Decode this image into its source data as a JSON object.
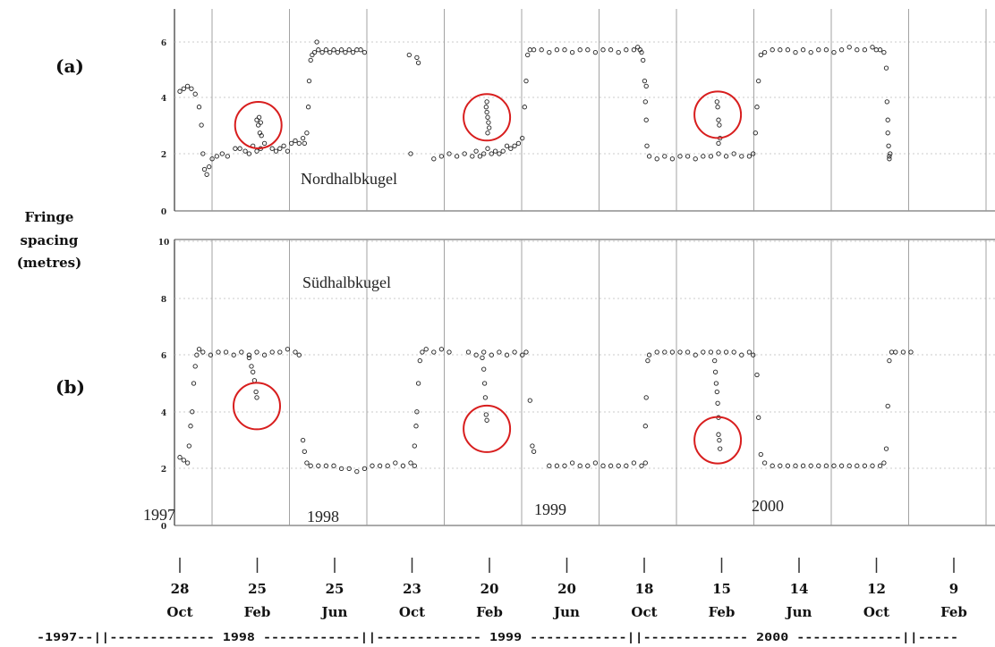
{
  "chart_data": [
    {
      "panel": "(a)",
      "type": "scatter",
      "annotation": "Nordhalbkugel",
      "ylim": [
        0,
        6.5
      ],
      "yticks": [
        "0",
        "2",
        "4",
        "6"
      ],
      "xlim": [
        0,
        11.6
      ],
      "points": [
        [
          0.0,
          4.6
        ],
        [
          0.05,
          4.7
        ],
        [
          0.1,
          4.8
        ],
        [
          0.15,
          4.7
        ],
        [
          0.2,
          4.5
        ],
        [
          0.25,
          4.0
        ],
        [
          0.28,
          3.3
        ],
        [
          0.3,
          2.2
        ],
        [
          0.32,
          1.6
        ],
        [
          0.35,
          1.4
        ],
        [
          0.38,
          1.7
        ],
        [
          0.42,
          2.0
        ],
        [
          0.48,
          2.1
        ],
        [
          0.55,
          2.2
        ],
        [
          0.62,
          2.1
        ],
        [
          0.72,
          2.4
        ],
        [
          0.78,
          2.4
        ],
        [
          0.85,
          2.3
        ],
        [
          0.9,
          2.2
        ],
        [
          0.95,
          2.5
        ],
        [
          1.0,
          2.3
        ],
        [
          1.05,
          2.4
        ],
        [
          1.1,
          2.6
        ],
        [
          1.2,
          2.4
        ],
        [
          1.25,
          2.3
        ],
        [
          1.3,
          2.4
        ],
        [
          1.35,
          2.5
        ],
        [
          1.4,
          2.3
        ],
        [
          1.45,
          2.6
        ],
        [
          1.5,
          2.7
        ],
        [
          1.55,
          2.6
        ],
        [
          1.6,
          2.8
        ],
        [
          1.62,
          2.6
        ],
        [
          1.0,
          3.5
        ],
        [
          1.02,
          3.3
        ],
        [
          1.04,
          3.0
        ],
        [
          1.06,
          2.9
        ],
        [
          1.03,
          3.6
        ],
        [
          1.05,
          3.4
        ],
        [
          1.65,
          3.0
        ],
        [
          1.67,
          4.0
        ],
        [
          1.68,
          5.0
        ],
        [
          1.7,
          5.8
        ],
        [
          1.72,
          6.0
        ],
        [
          1.75,
          6.1
        ],
        [
          1.8,
          6.2
        ],
        [
          1.85,
          6.1
        ],
        [
          1.9,
          6.2
        ],
        [
          1.95,
          6.1
        ],
        [
          2.0,
          6.2
        ],
        [
          2.05,
          6.1
        ],
        [
          2.1,
          6.2
        ],
        [
          2.15,
          6.1
        ],
        [
          2.2,
          6.2
        ],
        [
          2.25,
          6.1
        ],
        [
          2.3,
          6.2
        ],
        [
          2.35,
          6.2
        ],
        [
          2.4,
          6.1
        ],
        [
          1.78,
          6.5
        ],
        [
          2.98,
          6.0
        ],
        [
          3.08,
          5.9
        ],
        [
          3.1,
          5.7
        ],
        [
          3.0,
          2.2
        ],
        [
          3.3,
          2.0
        ],
        [
          3.4,
          2.1
        ],
        [
          3.5,
          2.2
        ],
        [
          3.6,
          2.1
        ],
        [
          3.7,
          2.2
        ],
        [
          3.8,
          2.1
        ],
        [
          3.85,
          2.3
        ],
        [
          3.9,
          2.1
        ],
        [
          3.95,
          2.2
        ],
        [
          4.0,
          2.4
        ],
        [
          4.05,
          2.2
        ],
        [
          4.1,
          2.3
        ],
        [
          4.15,
          2.2
        ],
        [
          4.2,
          2.3
        ],
        [
          4.25,
          2.5
        ],
        [
          4.3,
          2.4
        ],
        [
          4.35,
          2.5
        ],
        [
          4.4,
          2.6
        ],
        [
          4.45,
          2.8
        ],
        [
          3.98,
          4.0
        ],
        [
          3.99,
          3.8
        ],
        [
          4.0,
          3.6
        ],
        [
          4.01,
          3.4
        ],
        [
          4.02,
          3.2
        ],
        [
          3.99,
          4.2
        ],
        [
          4.0,
          3.0
        ],
        [
          4.48,
          4.0
        ],
        [
          4.5,
          5.0
        ],
        [
          4.52,
          6.0
        ],
        [
          4.55,
          6.2
        ],
        [
          4.6,
          6.2
        ],
        [
          4.7,
          6.2
        ],
        [
          4.8,
          6.1
        ],
        [
          4.9,
          6.2
        ],
        [
          5.0,
          6.2
        ],
        [
          5.1,
          6.1
        ],
        [
          5.2,
          6.2
        ],
        [
          5.3,
          6.2
        ],
        [
          5.4,
          6.1
        ],
        [
          5.5,
          6.2
        ],
        [
          5.6,
          6.2
        ],
        [
          5.7,
          6.1
        ],
        [
          5.8,
          6.2
        ],
        [
          5.9,
          6.2
        ],
        [
          5.95,
          6.3
        ],
        [
          5.98,
          6.2
        ],
        [
          6.0,
          6.1
        ],
        [
          6.02,
          5.8
        ],
        [
          6.04,
          5.0
        ],
        [
          6.05,
          4.2
        ],
        [
          6.06,
          3.5
        ],
        [
          6.07,
          2.5
        ],
        [
          6.06,
          4.8
        ],
        [
          6.1,
          2.1
        ],
        [
          6.2,
          2.0
        ],
        [
          6.3,
          2.1
        ],
        [
          6.4,
          2.0
        ],
        [
          6.5,
          2.1
        ],
        [
          6.6,
          2.1
        ],
        [
          6.7,
          2.0
        ],
        [
          6.8,
          2.1
        ],
        [
          6.9,
          2.1
        ],
        [
          7.0,
          2.2
        ],
        [
          7.1,
          2.1
        ],
        [
          7.2,
          2.2
        ],
        [
          7.3,
          2.1
        ],
        [
          7.4,
          2.1
        ],
        [
          7.45,
          2.2
        ],
        [
          6.98,
          4.2
        ],
        [
          6.99,
          4.0
        ],
        [
          7.0,
          3.5
        ],
        [
          7.01,
          3.3
        ],
        [
          7.02,
          2.8
        ],
        [
          7.0,
          2.6
        ],
        [
          7.48,
          3.0
        ],
        [
          7.5,
          4.0
        ],
        [
          7.52,
          5.0
        ],
        [
          7.55,
          6.0
        ],
        [
          7.6,
          6.1
        ],
        [
          7.7,
          6.2
        ],
        [
          7.8,
          6.2
        ],
        [
          7.9,
          6.2
        ],
        [
          8.0,
          6.1
        ],
        [
          8.1,
          6.2
        ],
        [
          8.2,
          6.1
        ],
        [
          8.3,
          6.2
        ],
        [
          8.4,
          6.2
        ],
        [
          8.5,
          6.1
        ],
        [
          8.6,
          6.2
        ],
        [
          8.7,
          6.3
        ],
        [
          8.8,
          6.2
        ],
        [
          8.9,
          6.2
        ],
        [
          9.0,
          6.3
        ],
        [
          9.05,
          6.2
        ],
        [
          9.1,
          6.2
        ],
        [
          9.15,
          6.1
        ],
        [
          9.18,
          5.5
        ],
        [
          9.19,
          4.2
        ],
        [
          9.2,
          3.5
        ],
        [
          9.2,
          3.0
        ],
        [
          9.21,
          2.5
        ],
        [
          9.22,
          2.1
        ],
        [
          9.22,
          2.0
        ],
        [
          9.23,
          2.2
        ]
      ]
    },
    {
      "panel": "(b)",
      "type": "scatter",
      "annotation": "Südhalbkugel",
      "ylim": [
        0,
        10
      ],
      "yticks": [
        "0",
        "2",
        "4",
        "6",
        "8",
        "10"
      ],
      "xlim": [
        0,
        11.6
      ],
      "points": [
        [
          0.0,
          2.4
        ],
        [
          0.05,
          2.3
        ],
        [
          0.1,
          2.2
        ],
        [
          0.12,
          2.8
        ],
        [
          0.14,
          3.5
        ],
        [
          0.16,
          4.0
        ],
        [
          0.18,
          5.0
        ],
        [
          0.2,
          5.6
        ],
        [
          0.22,
          6.0
        ],
        [
          0.25,
          6.2
        ],
        [
          0.3,
          6.1
        ],
        [
          0.4,
          6.0
        ],
        [
          0.5,
          6.1
        ],
        [
          0.6,
          6.1
        ],
        [
          0.7,
          6.0
        ],
        [
          0.8,
          6.1
        ],
        [
          0.9,
          6.0
        ],
        [
          1.0,
          6.1
        ],
        [
          1.1,
          6.0
        ],
        [
          1.2,
          6.1
        ],
        [
          1.3,
          6.1
        ],
        [
          1.4,
          6.2
        ],
        [
          1.5,
          6.1
        ],
        [
          1.55,
          6.0
        ],
        [
          0.9,
          5.9
        ],
        [
          0.93,
          5.6
        ],
        [
          0.95,
          5.4
        ],
        [
          0.97,
          5.1
        ],
        [
          0.99,
          4.7
        ],
        [
          1.0,
          4.5
        ],
        [
          1.6,
          3.0
        ],
        [
          1.62,
          2.6
        ],
        [
          1.65,
          2.2
        ],
        [
          1.7,
          2.1
        ],
        [
          1.8,
          2.1
        ],
        [
          1.9,
          2.1
        ],
        [
          2.0,
          2.1
        ],
        [
          2.1,
          2.0
        ],
        [
          2.2,
          2.0
        ],
        [
          2.3,
          1.9
        ],
        [
          2.4,
          2.0
        ],
        [
          2.5,
          2.1
        ],
        [
          2.6,
          2.1
        ],
        [
          2.7,
          2.1
        ],
        [
          2.8,
          2.2
        ],
        [
          2.9,
          2.1
        ],
        [
          3.0,
          2.2
        ],
        [
          3.05,
          2.1
        ],
        [
          3.05,
          2.8
        ],
        [
          3.07,
          3.5
        ],
        [
          3.08,
          4.0
        ],
        [
          3.1,
          5.0
        ],
        [
          3.12,
          5.8
        ],
        [
          3.15,
          6.1
        ],
        [
          3.2,
          6.2
        ],
        [
          3.3,
          6.1
        ],
        [
          3.4,
          6.2
        ],
        [
          3.5,
          6.1
        ],
        [
          3.75,
          6.1
        ],
        [
          3.85,
          6.0
        ],
        [
          3.95,
          6.1
        ],
        [
          4.05,
          6.0
        ],
        [
          4.15,
          6.1
        ],
        [
          4.25,
          6.0
        ],
        [
          4.35,
          6.1
        ],
        [
          4.45,
          6.0
        ],
        [
          4.5,
          6.1
        ],
        [
          4.55,
          4.4
        ],
        [
          4.58,
          2.8
        ],
        [
          4.6,
          2.6
        ],
        [
          3.93,
          5.9
        ],
        [
          3.95,
          5.5
        ],
        [
          3.96,
          5.0
        ],
        [
          3.97,
          4.5
        ],
        [
          3.98,
          3.9
        ],
        [
          3.99,
          3.7
        ],
        [
          4.8,
          2.1
        ],
        [
          4.9,
          2.1
        ],
        [
          5.0,
          2.1
        ],
        [
          5.1,
          2.2
        ],
        [
          5.2,
          2.1
        ],
        [
          5.3,
          2.1
        ],
        [
          5.4,
          2.2
        ],
        [
          5.5,
          2.1
        ],
        [
          5.6,
          2.1
        ],
        [
          5.7,
          2.1
        ],
        [
          5.8,
          2.1
        ],
        [
          5.9,
          2.2
        ],
        [
          6.0,
          2.1
        ],
        [
          6.05,
          2.2
        ],
        [
          6.05,
          3.5
        ],
        [
          6.06,
          4.5
        ],
        [
          6.08,
          5.8
        ],
        [
          6.1,
          6.0
        ],
        [
          6.2,
          6.1
        ],
        [
          6.3,
          6.1
        ],
        [
          6.4,
          6.1
        ],
        [
          6.5,
          6.1
        ],
        [
          6.6,
          6.1
        ],
        [
          6.7,
          6.0
        ],
        [
          6.8,
          6.1
        ],
        [
          6.9,
          6.1
        ],
        [
          7.0,
          6.1
        ],
        [
          7.1,
          6.1
        ],
        [
          7.2,
          6.1
        ],
        [
          7.3,
          6.0
        ],
        [
          7.4,
          6.1
        ],
        [
          7.45,
          6.0
        ],
        [
          6.95,
          5.8
        ],
        [
          6.96,
          5.4
        ],
        [
          6.97,
          5.0
        ],
        [
          6.98,
          4.7
        ],
        [
          6.99,
          4.3
        ],
        [
          7.0,
          3.8
        ],
        [
          7.0,
          3.2
        ],
        [
          7.01,
          3.0
        ],
        [
          7.02,
          2.7
        ],
        [
          7.5,
          5.3
        ],
        [
          7.52,
          3.8
        ],
        [
          7.55,
          2.5
        ],
        [
          7.6,
          2.2
        ],
        [
          7.7,
          2.1
        ],
        [
          7.8,
          2.1
        ],
        [
          7.9,
          2.1
        ],
        [
          8.0,
          2.1
        ],
        [
          8.1,
          2.1
        ],
        [
          8.2,
          2.1
        ],
        [
          8.3,
          2.1
        ],
        [
          8.4,
          2.1
        ],
        [
          8.5,
          2.1
        ],
        [
          8.6,
          2.1
        ],
        [
          8.7,
          2.1
        ],
        [
          8.8,
          2.1
        ],
        [
          8.9,
          2.1
        ],
        [
          9.0,
          2.1
        ],
        [
          9.1,
          2.1
        ],
        [
          9.15,
          2.2
        ],
        [
          9.18,
          2.7
        ],
        [
          9.2,
          4.2
        ],
        [
          9.22,
          5.8
        ],
        [
          9.25,
          6.1
        ],
        [
          9.3,
          6.1
        ],
        [
          9.4,
          6.1
        ],
        [
          9.5,
          6.1
        ]
      ]
    }
  ],
  "y_label": [
    "Fringe",
    "spacing",
    "(metres)"
  ],
  "panel_labels": [
    "(a)",
    "(b)"
  ],
  "year_labels": [
    "1997",
    "1998",
    "1999",
    "2000"
  ],
  "date_ticks": [
    {
      "day": "28",
      "mon": "Oct"
    },
    {
      "day": "25",
      "mon": "Feb"
    },
    {
      "day": "25",
      "mon": "Jun"
    },
    {
      "day": "23",
      "mon": "Oct"
    },
    {
      "day": "20",
      "mon": "Feb"
    },
    {
      "day": "20",
      "mon": "Jun"
    },
    {
      "day": "18",
      "mon": "Oct"
    },
    {
      "day": "15",
      "mon": "Feb"
    },
    {
      "day": "14",
      "mon": "Jun"
    },
    {
      "day": "12",
      "mon": "Oct"
    },
    {
      "day": "9",
      "mon": "Feb"
    }
  ],
  "year_bar": "-1997--||------------- 1998 ------------||------------- 1999 ------------||------------- 2000 -------------||-----",
  "circle_markers": [
    {
      "panel": 0,
      "x": 1.02,
      "y": 3.3
    },
    {
      "panel": 0,
      "x": 3.99,
      "y": 3.6
    },
    {
      "panel": 0,
      "x": 6.99,
      "y": 3.7
    },
    {
      "panel": 1,
      "x": 1.0,
      "y": 4.2
    },
    {
      "panel": 1,
      "x": 3.99,
      "y": 3.4
    },
    {
      "panel": 1,
      "x": 6.99,
      "y": 3.0
    }
  ]
}
